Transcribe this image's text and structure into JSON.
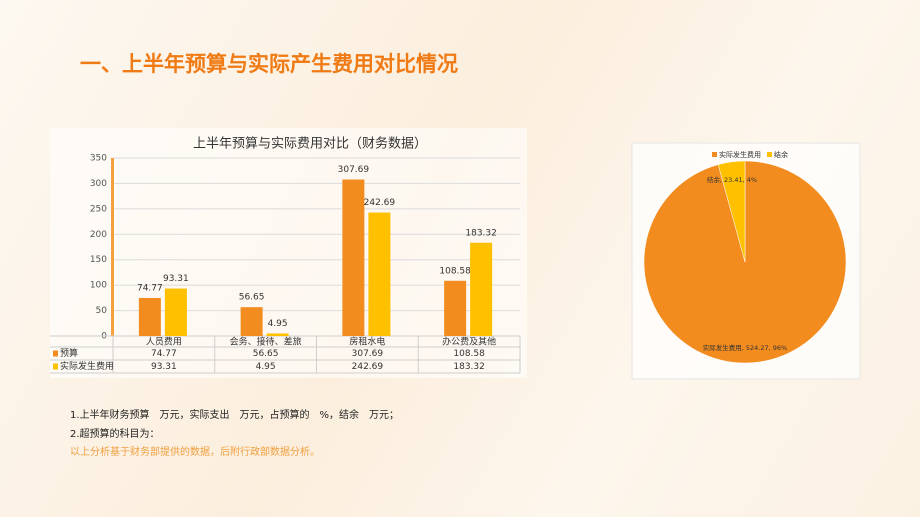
{
  "title": "一、上半年预算与实际产生费用对比情况",
  "notes": [
    "1.上半年财务预算　万元，实际支出　万元，占预算的　%，结余　万元；",
    "2.超预算的科目为：",
    "以上分析基于财务部提供的数据，后附行政部数据分析。"
  ],
  "chart_data": [
    {
      "type": "bar",
      "title": "上半年预算与实际费用对比（财务数据）",
      "categories": [
        "人员费用",
        "会务、接待、差旅",
        "房租水电",
        "办公费及其他"
      ],
      "series": [
        {
          "name": "预算",
          "color": "#f28c1e",
          "values": [
            74.77,
            56.65,
            307.69,
            108.58
          ]
        },
        {
          "name": "实际发生费用",
          "color": "#ffc000",
          "values": [
            93.31,
            4.95,
            242.69,
            183.32
          ]
        }
      ],
      "ylim": [
        0,
        350
      ],
      "yticks": [
        0,
        50,
        100,
        150,
        200,
        250,
        300,
        350
      ],
      "grid": true
    },
    {
      "type": "pie",
      "categories": [
        "实际发生费用",
        "结余"
      ],
      "values": [
        524.27,
        23.41
      ],
      "value_labels": [
        "实际发生费用, 524.27, 96%",
        "结余, 23.41, 4%"
      ],
      "colors": [
        "#f28c1e",
        "#ffc000"
      ]
    }
  ]
}
